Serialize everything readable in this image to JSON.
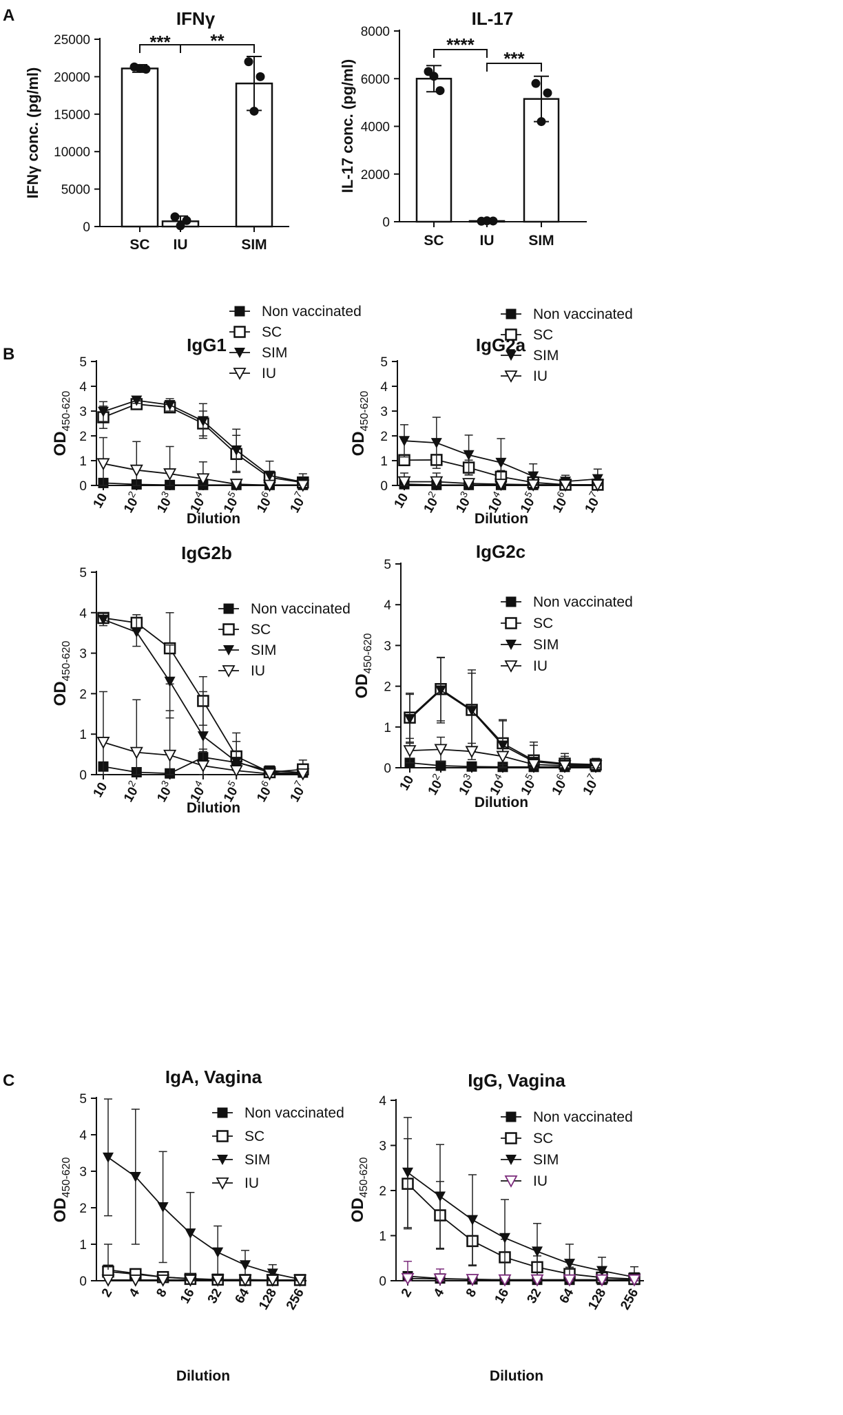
{
  "panel_labels": [
    "A",
    "B",
    "C"
  ],
  "chart_data": [
    {
      "id": "ifng",
      "type": "bar",
      "title": "IFNγ",
      "ylabel": "IFNγ conc. (pg/ml)",
      "xlabel": "",
      "ylim": [
        0,
        25000
      ],
      "yticks": [
        0,
        5000,
        10000,
        15000,
        20000,
        25000
      ],
      "categories": [
        "SC",
        "IU",
        "SIM"
      ],
      "values": [
        21100,
        700,
        19100
      ],
      "errors": [
        500,
        700,
        3600
      ],
      "points": [
        [
          21300,
          21000,
          21100
        ],
        [
          1300,
          800,
          100
        ],
        [
          22000,
          20000,
          15400
        ]
      ],
      "significance": [
        {
          "between": [
            "SC",
            "IU"
          ],
          "label": "***"
        },
        {
          "between": [
            "IU",
            "SIM"
          ],
          "label": "**"
        }
      ]
    },
    {
      "id": "il17",
      "type": "bar",
      "title": "IL-17",
      "ylabel": "IL-17 conc. (pg/ml)",
      "xlabel": "",
      "ylim": [
        0,
        8000
      ],
      "yticks": [
        0,
        2000,
        4000,
        6000,
        8000
      ],
      "categories": [
        "SC",
        "IU",
        "SIM"
      ],
      "values": [
        6000,
        30,
        5150
      ],
      "errors": [
        550,
        20,
        950
      ],
      "points": [
        [
          6300,
          5500,
          6100
        ],
        [
          20,
          30,
          40
        ],
        [
          5800,
          5400,
          4200
        ]
      ],
      "significance": [
        {
          "between": [
            "SC",
            "IU"
          ],
          "label": "****"
        },
        {
          "between": [
            "IU",
            "SIM"
          ],
          "label": "***"
        }
      ]
    },
    {
      "id": "igg1",
      "type": "line",
      "title": "IgG1",
      "ylabel": "OD450-620",
      "ylabel_main": "OD",
      "ylabel_sub": "450-620",
      "xlabel": "Dilution",
      "ylim": [
        0,
        5
      ],
      "yticks": [
        0,
        1,
        2,
        3,
        4,
        5
      ],
      "xticks": [
        {
          "base": "10",
          "exp": ""
        },
        {
          "base": "10",
          "exp": "2"
        },
        {
          "base": "10",
          "exp": "3"
        },
        {
          "base": "10",
          "exp": "4"
        },
        {
          "base": "10",
          "exp": "5"
        },
        {
          "base": "10",
          "exp": "6"
        },
        {
          "base": "10",
          "exp": "7"
        }
      ],
      "legend": [
        "Non vaccinated",
        "SC",
        "SIM",
        "IU"
      ],
      "series": [
        {
          "name": "Non vaccinated",
          "values": [
            0.1,
            0.04,
            0.02,
            0.02,
            0.02,
            0.02,
            0.02
          ],
          "errors": [
            0.05,
            0.04,
            0.03,
            0.03,
            0.05,
            0.03,
            0.03
          ]
        },
        {
          "name": "SC",
          "values": [
            2.75,
            3.28,
            3.15,
            2.5,
            1.27,
            0.32,
            0.12
          ],
          "errors": [
            0.45,
            0.15,
            0.15,
            0.5,
            0.75,
            0.25,
            0.2
          ]
        },
        {
          "name": "SIM",
          "values": [
            2.98,
            3.43,
            3.25,
            2.6,
            1.42,
            0.4,
            0.14
          ],
          "errors": [
            0.4,
            0.12,
            0.25,
            0.7,
            0.85,
            0.58,
            0.33
          ]
        },
        {
          "name": "IU",
          "values": [
            0.88,
            0.62,
            0.47,
            0.27,
            0.05,
            0.01,
            0.01
          ],
          "errors": [
            1.05,
            1.15,
            1.1,
            0.68,
            0.15,
            0.05,
            0.04
          ]
        }
      ]
    },
    {
      "id": "igg2a",
      "type": "line",
      "title": "IgG2a",
      "ylabel": "OD450-620",
      "ylabel_main": "OD",
      "ylabel_sub": "450-620",
      "xlabel": "Dilution",
      "ylim": [
        0,
        5
      ],
      "yticks": [
        0,
        1,
        2,
        3,
        4,
        5
      ],
      "xticks": [
        {
          "base": "10",
          "exp": ""
        },
        {
          "base": "10",
          "exp": "2"
        },
        {
          "base": "10",
          "exp": "3"
        },
        {
          "base": "10",
          "exp": "4"
        },
        {
          "base": "10",
          "exp": "5"
        },
        {
          "base": "10",
          "exp": "6"
        },
        {
          "base": "10",
          "exp": "7"
        }
      ],
      "legend": [
        "Non vaccinated",
        "SC",
        "SIM",
        "IU"
      ],
      "series": [
        {
          "name": "Non vaccinated",
          "values": [
            0.05,
            0.02,
            0.02,
            0.02,
            0.02,
            0.02,
            0.02
          ],
          "errors": [
            0.05,
            0.04,
            0.04,
            0.03,
            0.03,
            0.03,
            0.03
          ]
        },
        {
          "name": "SC",
          "values": [
            1.02,
            1.03,
            0.72,
            0.35,
            0.12,
            0.03,
            0.03
          ],
          "errors": [
            0.18,
            0.2,
            0.3,
            0.25,
            0.1,
            0.05,
            0.04
          ]
        },
        {
          "name": "SIM",
          "values": [
            1.8,
            1.72,
            1.23,
            0.92,
            0.37,
            0.16,
            0.26
          ],
          "errors": [
            0.65,
            1.03,
            0.8,
            0.97,
            0.5,
            0.25,
            0.4
          ]
        },
        {
          "name": "IU",
          "values": [
            0.15,
            0.15,
            0.08,
            0.05,
            0.03,
            0.02,
            0.02
          ],
          "errors": [
            0.35,
            0.35,
            0.15,
            0.08,
            0.05,
            0.03,
            0.03
          ]
        }
      ]
    },
    {
      "id": "igg2b",
      "type": "line",
      "title": "IgG2b",
      "ylabel": "OD450-620",
      "ylabel_main": "OD",
      "ylabel_sub": "450-620",
      "xlabel": "Dilution",
      "ylim": [
        0,
        5
      ],
      "yticks": [
        0,
        1,
        2,
        3,
        4,
        5
      ],
      "xticks": [
        {
          "base": "10",
          "exp": ""
        },
        {
          "base": "10",
          "exp": "2"
        },
        {
          "base": "10",
          "exp": "3"
        },
        {
          "base": "10",
          "exp": "4"
        },
        {
          "base": "10",
          "exp": "5"
        },
        {
          "base": "10",
          "exp": "6"
        },
        {
          "base": "10",
          "exp": "7"
        }
      ],
      "legend": [
        "Non vaccinated",
        "SC",
        "SIM",
        "IU"
      ],
      "series": [
        {
          "name": "Non vaccinated",
          "values": [
            0.2,
            0.06,
            0.03,
            0.43,
            0.3,
            0.1,
            0.05
          ],
          "errors": [
            0.05,
            0.05,
            0.05,
            0.2,
            0.2,
            0.05,
            0.05
          ]
        },
        {
          "name": "SC",
          "values": [
            3.87,
            3.75,
            3.12,
            1.82,
            0.45,
            0.06,
            0.13
          ],
          "errors": [
            0.12,
            0.2,
            0.88,
            0.6,
            0.58,
            0.05,
            0.23
          ]
        },
        {
          "name": "SIM",
          "values": [
            3.83,
            3.52,
            2.3,
            0.95,
            0.32,
            0.05,
            0.03
          ],
          "errors": [
            0.15,
            0.35,
            0.9,
            1.1,
            0.5,
            0.05,
            0.05
          ]
        },
        {
          "name": "IU",
          "values": [
            0.8,
            0.55,
            0.48,
            0.22,
            0.1,
            0.02,
            0.02
          ],
          "errors": [
            1.25,
            1.3,
            1.1,
            0.35,
            0.1,
            0.03,
            0.03
          ]
        }
      ]
    },
    {
      "id": "igg2c",
      "type": "line",
      "title": "IgG2c",
      "ylabel": "OD450-620",
      "ylabel_main": "OD",
      "ylabel_sub": "450-620",
      "xlabel": "Dilution",
      "ylim": [
        0,
        5
      ],
      "yticks": [
        0,
        1,
        2,
        3,
        4,
        5
      ],
      "xticks": [
        {
          "base": "10",
          "exp": ""
        },
        {
          "base": "10",
          "exp": "2"
        },
        {
          "base": "10",
          "exp": "3"
        },
        {
          "base": "10",
          "exp": "4"
        },
        {
          "base": "10",
          "exp": "5"
        },
        {
          "base": "10",
          "exp": "6"
        },
        {
          "base": "10",
          "exp": "7"
        }
      ],
      "legend": [
        "Non vaccinated",
        "SC",
        "SIM",
        "IU"
      ],
      "series": [
        {
          "name": "Non vaccinated",
          "values": [
            0.12,
            0.05,
            0.03,
            0.02,
            0.02,
            0.02,
            0.02
          ],
          "errors": [
            0.05,
            0.04,
            0.04,
            0.03,
            0.03,
            0.03,
            0.03
          ]
        },
        {
          "name": "SC",
          "values": [
            1.23,
            1.93,
            1.42,
            0.6,
            0.18,
            0.1,
            0.08
          ],
          "errors": [
            0.6,
            0.78,
            0.9,
            0.58,
            0.45,
            0.25,
            0.15
          ]
        },
        {
          "name": "SIM",
          "values": [
            1.2,
            1.9,
            1.4,
            0.55,
            0.15,
            0.08,
            0.06
          ],
          "errors": [
            0.6,
            0.8,
            1.0,
            0.6,
            0.4,
            0.2,
            0.1
          ]
        },
        {
          "name": "IU",
          "values": [
            0.42,
            0.45,
            0.4,
            0.28,
            0.08,
            0.05,
            0.05
          ],
          "errors": [
            0.3,
            0.3,
            0.2,
            0.2,
            0.1,
            0.05,
            0.05
          ]
        }
      ]
    },
    {
      "id": "iga_vagina",
      "type": "line",
      "title": "IgA, Vagina",
      "ylabel": "OD450-620",
      "ylabel_main": "OD",
      "ylabel_sub": "450-620",
      "xlabel": "Dilution",
      "ylim": [
        0,
        5
      ],
      "yticks": [
        0,
        1,
        2,
        3,
        4,
        5
      ],
      "xticks": [
        {
          "base": "2",
          "exp": ""
        },
        {
          "base": "4",
          "exp": ""
        },
        {
          "base": "8",
          "exp": ""
        },
        {
          "base": "16",
          "exp": ""
        },
        {
          "base": "32",
          "exp": ""
        },
        {
          "base": "64",
          "exp": ""
        },
        {
          "base": "128",
          "exp": ""
        },
        {
          "base": "256",
          "exp": ""
        }
      ],
      "legend": [
        "Non vaccinated",
        "SC",
        "SIM",
        "IU"
      ],
      "series": [
        {
          "name": "Non vaccinated",
          "values": [
            0.3,
            0.2,
            0.1,
            0.06,
            0.03,
            0.03,
            0.02,
            0.02
          ],
          "errors": [
            0.1,
            0.1,
            0.08,
            0.05,
            0.04,
            0.03,
            0.03,
            0.03
          ]
        },
        {
          "name": "SC",
          "values": [
            0.25,
            0.18,
            0.1,
            0.05,
            0.03,
            0.02,
            0.02,
            0.02
          ],
          "errors": [
            0.1,
            0.1,
            0.05,
            0.04,
            0.03,
            0.03,
            0.03,
            0.03
          ]
        },
        {
          "name": "SIM",
          "values": [
            3.38,
            2.85,
            2.02,
            1.3,
            0.78,
            0.43,
            0.2,
            0.04
          ],
          "errors": [
            1.6,
            1.85,
            1.52,
            1.12,
            0.72,
            0.4,
            0.24,
            0.03
          ]
        },
        {
          "name": "IU",
          "values": [
            0.02,
            0.02,
            0.02,
            0.02,
            0.02,
            0.02,
            0.02,
            0.02
          ],
          "errors": [
            0.02,
            0.02,
            0.02,
            0.02,
            0.02,
            0.02,
            0.02,
            0.02
          ]
        }
      ],
      "extra_upper_error": {
        "series": "Non vaccinated",
        "index": 0,
        "value": 1.0
      }
    },
    {
      "id": "igg_vagina",
      "type": "line",
      "title": "IgG, Vagina",
      "ylabel": "OD450-620",
      "ylabel_main": "OD",
      "ylabel_sub": "450-620",
      "xlabel": "Dilution",
      "ylim": [
        0,
        4
      ],
      "yticks": [
        0,
        1,
        2,
        3,
        4
      ],
      "xticks": [
        {
          "base": "2",
          "exp": ""
        },
        {
          "base": "4",
          "exp": ""
        },
        {
          "base": "8",
          "exp": ""
        },
        {
          "base": "16",
          "exp": ""
        },
        {
          "base": "32",
          "exp": ""
        },
        {
          "base": "64",
          "exp": ""
        },
        {
          "base": "128",
          "exp": ""
        },
        {
          "base": "256",
          "exp": ""
        }
      ],
      "legend": [
        "Non vaccinated",
        "SC",
        "SIM",
        "IU"
      ],
      "iu_color": "#7a2a7a",
      "series": [
        {
          "name": "Non vaccinated",
          "values": [
            0.1,
            0.05,
            0.03,
            0.02,
            0.02,
            0.02,
            0.02,
            0.02
          ],
          "errors": [
            0.05,
            0.05,
            0.03,
            0.03,
            0.03,
            0.03,
            0.03,
            0.03
          ]
        },
        {
          "name": "SC",
          "values": [
            2.15,
            1.45,
            0.88,
            0.52,
            0.3,
            0.15,
            0.07,
            0.04
          ],
          "errors": [
            1.0,
            0.75,
            0.55,
            0.4,
            0.25,
            0.15,
            0.1,
            0.08
          ]
        },
        {
          "name": "SIM",
          "values": [
            2.4,
            1.87,
            1.35,
            0.95,
            0.65,
            0.38,
            0.22,
            0.08
          ],
          "errors": [
            1.22,
            1.15,
            1.0,
            0.85,
            0.62,
            0.43,
            0.3,
            0.23
          ]
        },
        {
          "name": "IU",
          "values": [
            0.05,
            0.04,
            0.03,
            0.02,
            0.02,
            0.02,
            0.02,
            0.02
          ],
          "errors": [
            0.38,
            0.22,
            0.1,
            0.05,
            0.03,
            0.03,
            0.03,
            0.03
          ]
        }
      ]
    }
  ]
}
